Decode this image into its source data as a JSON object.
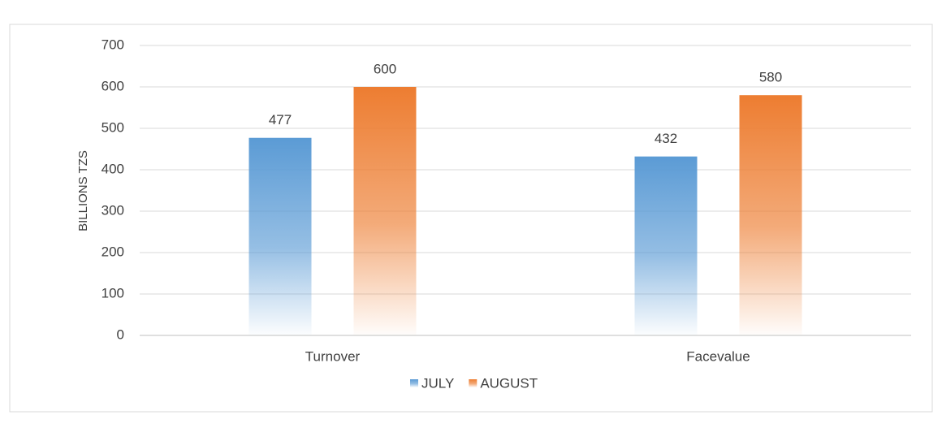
{
  "chart_data": {
    "type": "bar",
    "y_label": "BILLIONS TZS",
    "categories": [
      "Turnover",
      "Facevalue"
    ],
    "series": [
      {
        "name": "JULY",
        "color": "#5b9bd5",
        "values": [
          477,
          432
        ]
      },
      {
        "name": "AUGUST",
        "color": "#ed7d31",
        "values": [
          600,
          580
        ]
      }
    ],
    "ylim": [
      0,
      700
    ],
    "yticks": [
      0,
      100,
      200,
      300,
      400,
      500,
      600,
      700
    ],
    "grid": true,
    "legend": "bottom",
    "data_labels": true
  }
}
